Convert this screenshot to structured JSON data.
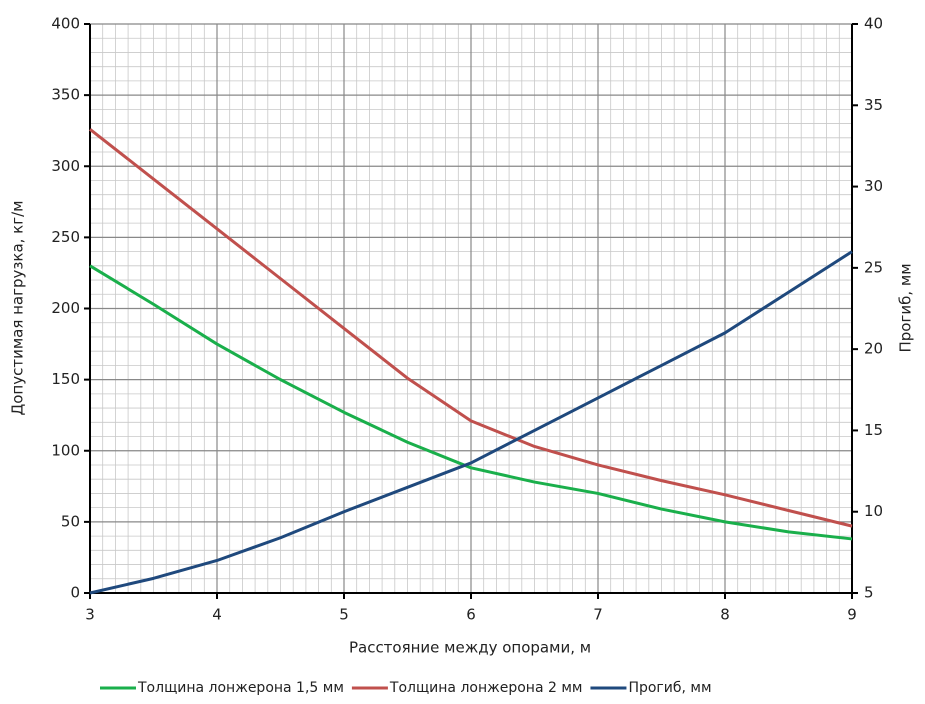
{
  "chart_data": {
    "type": "line",
    "xlabel": "Расстояние между опорами, м",
    "ylabel": "Допустимая нагрузка, кг/м",
    "y2label": "Прогиб, мм",
    "x": [
      3,
      3.5,
      4,
      4.5,
      5,
      5.5,
      6,
      6.5,
      7,
      7.5,
      8,
      8.5,
      9
    ],
    "series": [
      {
        "name": "Толщина лонжерона 1,5 мм",
        "color": "#1aaf4b",
        "values": [
          230,
          203,
          175,
          150,
          127,
          106,
          88,
          78,
          70,
          59,
          50,
          43,
          38
        ]
      },
      {
        "name": "Толщина лонжерона 2 мм",
        "color": "#c0504d",
        "values": [
          326,
          291,
          256,
          221,
          186,
          151,
          121,
          103,
          90,
          79,
          69,
          58,
          47
        ]
      },
      {
        "name": "Прогиб, мм",
        "color": "#1f497d",
        "axis": "y2",
        "values": [
          5,
          5.9,
          7,
          8.4,
          10,
          11.5,
          13,
          15,
          17,
          19,
          21,
          23.5,
          26
        ]
      }
    ],
    "xlim": [
      3,
      9
    ],
    "xticks": [
      3,
      4,
      5,
      6,
      7,
      8,
      9
    ],
    "ylim": [
      0,
      400
    ],
    "yticks": [
      0,
      50,
      100,
      150,
      200,
      250,
      300,
      350,
      400
    ],
    "y2lim": [
      5,
      40
    ],
    "y2ticks": [
      5,
      10,
      15,
      20,
      25,
      30,
      35,
      40
    ],
    "grid": true,
    "minor_grid": true,
    "legend": "bottom"
  }
}
